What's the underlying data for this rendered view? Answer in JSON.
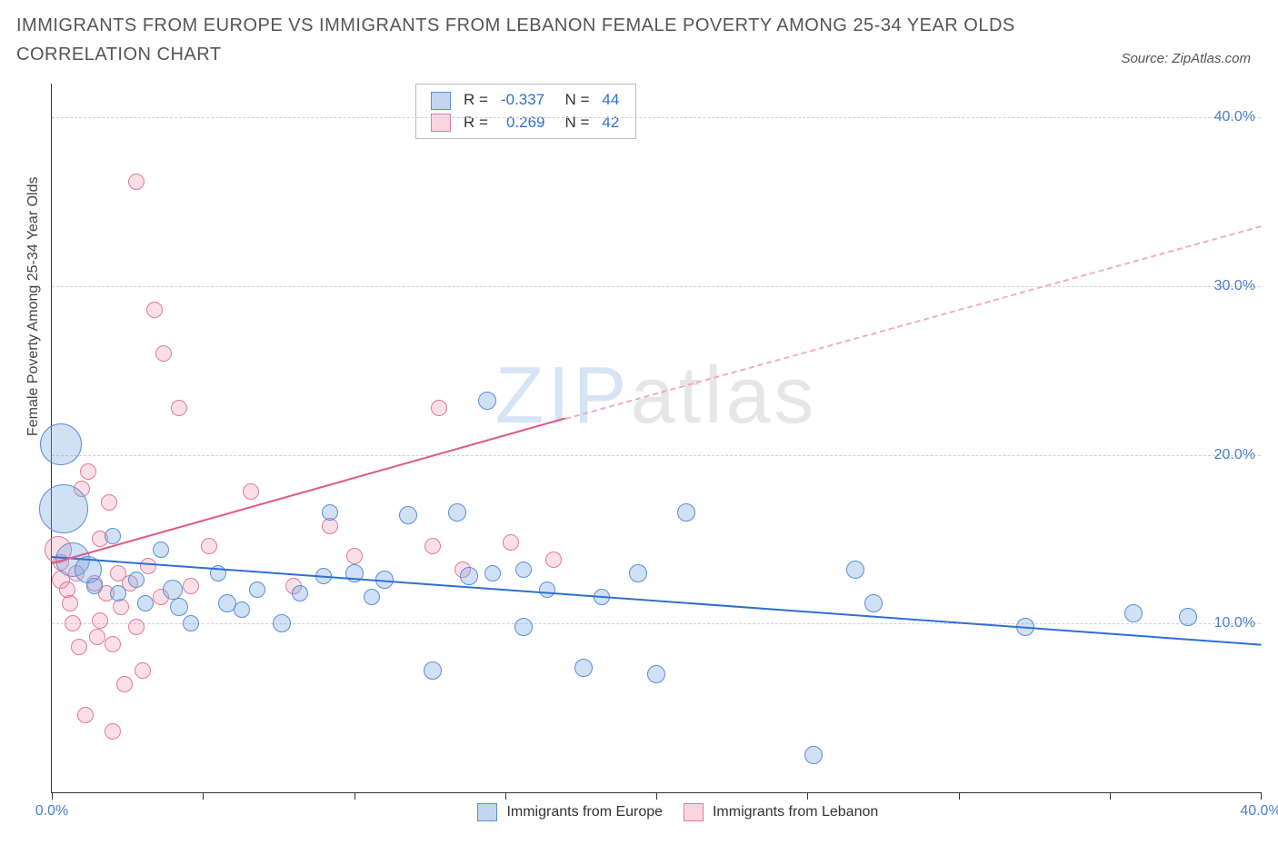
{
  "title": "IMMIGRANTS FROM EUROPE VS IMMIGRANTS FROM LEBANON FEMALE POVERTY AMONG 25-34 YEAR OLDS CORRELATION CHART",
  "source_label": "Source: ZipAtlas.com",
  "ylabel": "Female Poverty Among 25-34 Year Olds",
  "watermark_a": "ZIP",
  "watermark_b": "atlas",
  "chart": {
    "type": "scatter",
    "xlim": [
      0,
      40
    ],
    "ylim": [
      0,
      42
    ],
    "x_ticks": [
      0,
      5,
      10,
      15,
      20,
      25,
      30,
      35,
      40
    ],
    "x_tick_labels": {
      "0": "0.0%",
      "40": "40.0%"
    },
    "y_gridlines": [
      10,
      20,
      30,
      40
    ],
    "y_tick_labels": {
      "10": "10.0%",
      "20": "20.0%",
      "30": "30.0%",
      "40": "40.0%"
    },
    "background_color": "#ffffff",
    "grid_color": "#d0d0d0",
    "axis_color": "#333333",
    "label_fontsize": 16,
    "title_fontsize": 20
  },
  "series": {
    "europe": {
      "label": "Immigrants from Europe",
      "color_fill": "rgba(120,165,225,0.35)",
      "color_stroke": "#5a8fd6",
      "R": "-0.337",
      "N": "44",
      "trend": {
        "x1": 0,
        "y1": 14.0,
        "x2": 40,
        "y2": 8.8,
        "color": "#2f6fd0",
        "width": 2.5
      },
      "points": [
        {
          "x": 0.3,
          "y": 20.6,
          "r": 22
        },
        {
          "x": 0.4,
          "y": 16.8,
          "r": 26
        },
        {
          "x": 0.7,
          "y": 13.8,
          "r": 18
        },
        {
          "x": 1.2,
          "y": 13.2,
          "r": 14
        },
        {
          "x": 1.4,
          "y": 12.2,
          "r": 8
        },
        {
          "x": 2.0,
          "y": 15.2,
          "r": 8
        },
        {
          "x": 2.2,
          "y": 11.8,
          "r": 8
        },
        {
          "x": 2.8,
          "y": 12.6,
          "r": 8
        },
        {
          "x": 3.1,
          "y": 11.2,
          "r": 8
        },
        {
          "x": 3.6,
          "y": 14.4,
          "r": 8
        },
        {
          "x": 4.0,
          "y": 12.0,
          "r": 10
        },
        {
          "x": 4.2,
          "y": 11.0,
          "r": 9
        },
        {
          "x": 4.6,
          "y": 10.0,
          "r": 8
        },
        {
          "x": 5.5,
          "y": 13.0,
          "r": 8
        },
        {
          "x": 5.8,
          "y": 11.2,
          "r": 9
        },
        {
          "x": 6.3,
          "y": 10.8,
          "r": 8
        },
        {
          "x": 6.8,
          "y": 12.0,
          "r": 8
        },
        {
          "x": 7.6,
          "y": 10.0,
          "r": 9
        },
        {
          "x": 8.2,
          "y": 11.8,
          "r": 8
        },
        {
          "x": 9.0,
          "y": 12.8,
          "r": 8
        },
        {
          "x": 9.2,
          "y": 16.6,
          "r": 8
        },
        {
          "x": 10.0,
          "y": 13.0,
          "r": 9
        },
        {
          "x": 10.6,
          "y": 11.6,
          "r": 8
        },
        {
          "x": 11.0,
          "y": 12.6,
          "r": 9
        },
        {
          "x": 11.8,
          "y": 16.4,
          "r": 9
        },
        {
          "x": 12.6,
          "y": 7.2,
          "r": 9
        },
        {
          "x": 13.4,
          "y": 16.6,
          "r": 9
        },
        {
          "x": 13.8,
          "y": 12.8,
          "r": 9
        },
        {
          "x": 14.4,
          "y": 23.2,
          "r": 9
        },
        {
          "x": 14.6,
          "y": 13.0,
          "r": 8
        },
        {
          "x": 15.6,
          "y": 13.2,
          "r": 8
        },
        {
          "x": 15.6,
          "y": 9.8,
          "r": 9
        },
        {
          "x": 16.4,
          "y": 12.0,
          "r": 8
        },
        {
          "x": 17.6,
          "y": 7.4,
          "r": 9
        },
        {
          "x": 18.2,
          "y": 11.6,
          "r": 8
        },
        {
          "x": 19.4,
          "y": 13.0,
          "r": 9
        },
        {
          "x": 20.0,
          "y": 7.0,
          "r": 9
        },
        {
          "x": 21.0,
          "y": 16.6,
          "r": 9
        },
        {
          "x": 25.2,
          "y": 2.2,
          "r": 9
        },
        {
          "x": 26.6,
          "y": 13.2,
          "r": 9
        },
        {
          "x": 27.2,
          "y": 11.2,
          "r": 9
        },
        {
          "x": 32.2,
          "y": 9.8,
          "r": 9
        },
        {
          "x": 35.8,
          "y": 10.6,
          "r": 9
        },
        {
          "x": 37.6,
          "y": 10.4,
          "r": 9
        }
      ]
    },
    "lebanon": {
      "label": "Immigrants from Lebanon",
      "color_fill": "rgba(240,150,175,0.30)",
      "color_stroke": "#e27a9a",
      "R": "0.269",
      "N": "42",
      "trend_solid": {
        "x1": 0,
        "y1": 13.6,
        "x2": 17,
        "y2": 22.2,
        "color": "#e05b85",
        "width": 2
      },
      "trend_dashed": {
        "x1": 17,
        "y1": 22.2,
        "x2": 40,
        "y2": 33.6,
        "color": "#f0aebf",
        "width": 2
      },
      "points": [
        {
          "x": 0.2,
          "y": 14.4,
          "r": 14
        },
        {
          "x": 0.3,
          "y": 13.6,
          "r": 8
        },
        {
          "x": 0.3,
          "y": 12.6,
          "r": 9
        },
        {
          "x": 0.5,
          "y": 12.0,
          "r": 8
        },
        {
          "x": 0.6,
          "y": 11.2,
          "r": 8
        },
        {
          "x": 0.7,
          "y": 10.0,
          "r": 8
        },
        {
          "x": 0.8,
          "y": 13.0,
          "r": 8
        },
        {
          "x": 0.9,
          "y": 8.6,
          "r": 8
        },
        {
          "x": 1.0,
          "y": 18.0,
          "r": 8
        },
        {
          "x": 1.1,
          "y": 4.6,
          "r": 8
        },
        {
          "x": 1.2,
          "y": 19.0,
          "r": 8
        },
        {
          "x": 1.4,
          "y": 12.4,
          "r": 8
        },
        {
          "x": 1.5,
          "y": 9.2,
          "r": 8
        },
        {
          "x": 1.6,
          "y": 15.0,
          "r": 8
        },
        {
          "x": 1.6,
          "y": 10.2,
          "r": 8
        },
        {
          "x": 1.8,
          "y": 11.8,
          "r": 8
        },
        {
          "x": 1.9,
          "y": 17.2,
          "r": 8
        },
        {
          "x": 2.0,
          "y": 8.8,
          "r": 8
        },
        {
          "x": 2.0,
          "y": 3.6,
          "r": 8
        },
        {
          "x": 2.2,
          "y": 13.0,
          "r": 8
        },
        {
          "x": 2.3,
          "y": 11.0,
          "r": 8
        },
        {
          "x": 2.4,
          "y": 6.4,
          "r": 8
        },
        {
          "x": 2.6,
          "y": 12.4,
          "r": 8
        },
        {
          "x": 2.8,
          "y": 36.2,
          "r": 8
        },
        {
          "x": 2.8,
          "y": 9.8,
          "r": 8
        },
        {
          "x": 3.0,
          "y": 7.2,
          "r": 8
        },
        {
          "x": 3.2,
          "y": 13.4,
          "r": 8
        },
        {
          "x": 3.4,
          "y": 28.6,
          "r": 8
        },
        {
          "x": 3.6,
          "y": 11.6,
          "r": 8
        },
        {
          "x": 3.7,
          "y": 26.0,
          "r": 8
        },
        {
          "x": 4.2,
          "y": 22.8,
          "r": 8
        },
        {
          "x": 4.6,
          "y": 12.2,
          "r": 8
        },
        {
          "x": 5.2,
          "y": 14.6,
          "r": 8
        },
        {
          "x": 6.6,
          "y": 17.8,
          "r": 8
        },
        {
          "x": 8.0,
          "y": 12.2,
          "r": 8
        },
        {
          "x": 9.2,
          "y": 15.8,
          "r": 8
        },
        {
          "x": 10.0,
          "y": 14.0,
          "r": 8
        },
        {
          "x": 12.6,
          "y": 14.6,
          "r": 8
        },
        {
          "x": 12.8,
          "y": 22.8,
          "r": 8
        },
        {
          "x": 13.6,
          "y": 13.2,
          "r": 8
        },
        {
          "x": 15.2,
          "y": 14.8,
          "r": 8
        },
        {
          "x": 16.6,
          "y": 13.8,
          "r": 8
        }
      ]
    }
  },
  "legend_top": {
    "r_label": "R =",
    "n_label": "N ="
  }
}
